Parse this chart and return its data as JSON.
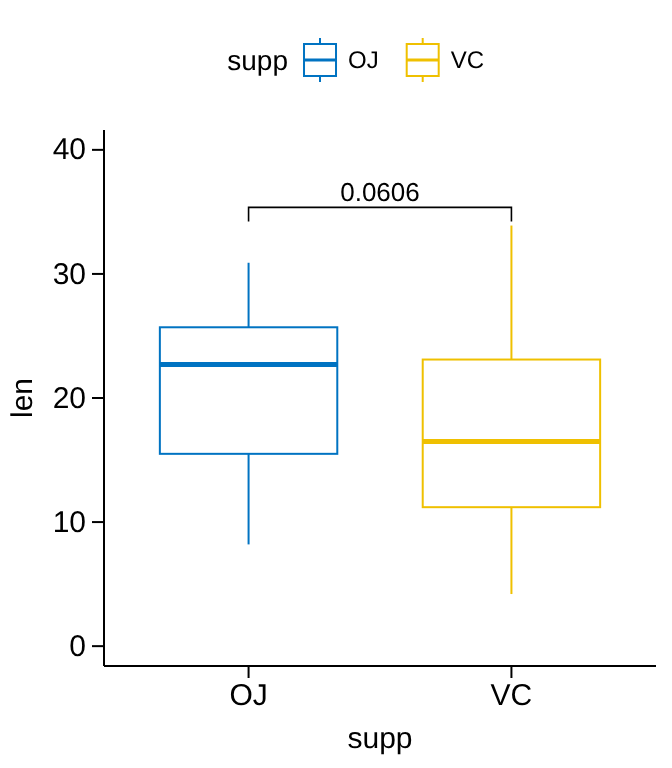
{
  "chart_data": {
    "type": "box",
    "xlabel": "supp",
    "ylabel": "len",
    "legend_title": "supp",
    "legend": "top",
    "grid": false,
    "categories": [
      "OJ",
      "VC"
    ],
    "series": [
      {
        "name": "OJ",
        "color": "#0073c2",
        "boxes": [
          {
            "low": 8.2,
            "q1": 15.5,
            "median": 22.7,
            "q3": 25.7,
            "high": 30.9
          },
          null
        ]
      },
      {
        "name": "VC",
        "color": "#efc000",
        "boxes": [
          null,
          {
            "low": 4.2,
            "q1": 11.2,
            "median": 16.5,
            "q3": 23.1,
            "high": 33.9
          }
        ]
      }
    ],
    "ylim": [
      -1.6,
      41.6
    ],
    "yticks": [
      0,
      10,
      20,
      30,
      40
    ],
    "annotations": [
      "0.0606"
    ]
  }
}
